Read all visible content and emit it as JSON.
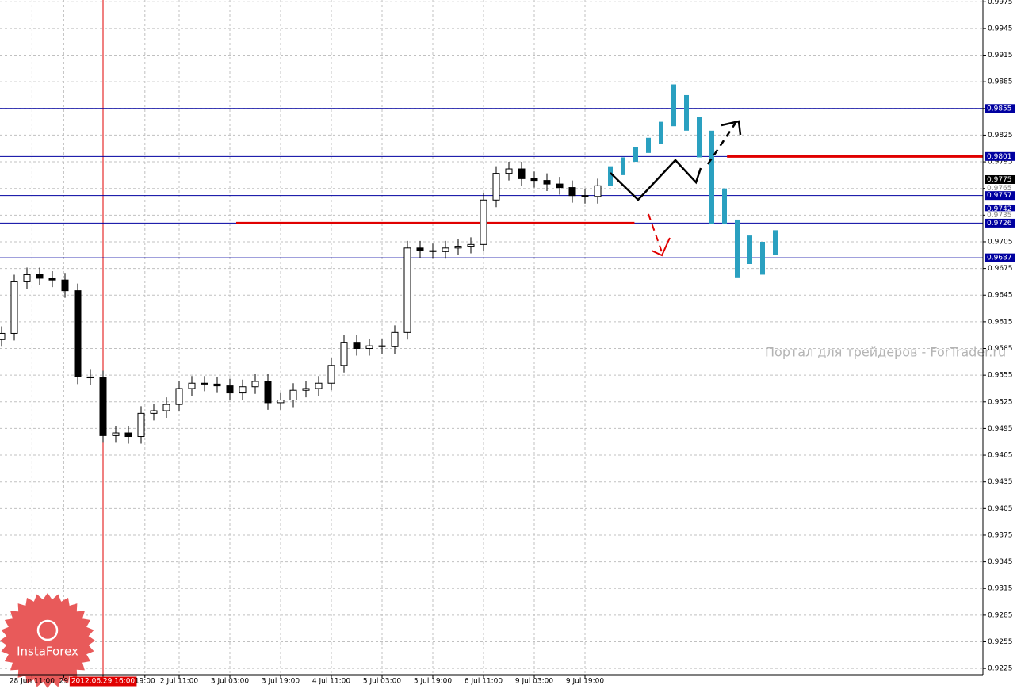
{
  "chart_data": {
    "type": "candlestick",
    "xlim": [
      -0.125,
      77.375
    ],
    "ylim": [
      0.9218,
      0.9977
    ],
    "yticks": [
      0.9975,
      0.9945,
      0.9915,
      0.9885,
      0.9855,
      0.9825,
      0.9795,
      0.9765,
      0.9735,
      0.9705,
      0.9675,
      0.9645,
      0.9615,
      0.9585,
      0.9555,
      0.9525,
      0.9495,
      0.9465,
      0.9435,
      0.9405,
      0.9375,
      0.9345,
      0.9315,
      0.9285,
      0.9255,
      0.9225
    ],
    "xticks": [
      {
        "value": 2.4,
        "label": "28 Jun 11:00"
      },
      {
        "value": 4.9,
        "label": "29"
      },
      {
        "value": 8,
        "label": "2012.06.29 16:00"
      },
      {
        "value": 11.3,
        "label": "19:00"
      },
      {
        "value": 14,
        "label": "2 Jul 11:00"
      },
      {
        "value": 18,
        "label": "3 Jul 03:00"
      },
      {
        "value": 22,
        "label": "3 Jul 19:00"
      },
      {
        "value": 26,
        "label": "4 Jul 11:00"
      },
      {
        "value": 30,
        "label": "5 Jul 03:00"
      },
      {
        "value": 34,
        "label": "5 Jul 19:00"
      },
      {
        "value": 38,
        "label": "6 Jul 11:00"
      },
      {
        "value": 42,
        "label": "9 Jul 03:00"
      },
      {
        "value": 46,
        "label": "9 Jul 19:00"
      }
    ],
    "marker_tick": 2,
    "grid": true,
    "x": [
      0,
      1,
      2,
      3,
      4,
      5,
      6,
      7,
      8,
      9,
      10,
      11,
      12,
      13,
      14,
      15,
      16,
      17,
      18,
      19,
      20,
      21,
      22,
      23,
      24,
      25,
      26,
      27,
      28,
      29,
      30,
      31,
      32,
      33,
      34,
      35,
      36,
      37,
      38,
      39,
      40,
      41,
      42,
      43,
      44,
      45,
      46,
      47
    ],
    "open": [
      0.9595,
      0.9602,
      0.966,
      0.9668,
      0.9664,
      0.9662,
      0.965,
      0.9553,
      0.9552,
      0.9487,
      0.949,
      0.9486,
      0.9512,
      0.9515,
      0.9522,
      0.954,
      0.9546,
      0.9545,
      0.9543,
      0.9535,
      0.9542,
      0.9548,
      0.9524,
      0.9527,
      0.9538,
      0.954,
      0.9546,
      0.9566,
      0.9592,
      0.9585,
      0.9588,
      0.9587,
      0.9603,
      0.9698,
      0.9695,
      0.9694,
      0.9698,
      0.97,
      0.9702,
      0.9752,
      0.9782,
      0.9787,
      0.9776,
      0.9774,
      0.977,
      0.9766,
      0.9757,
      0.9756
    ],
    "high": [
      0.961,
      0.9668,
      0.9676,
      0.9676,
      0.9672,
      0.967,
      0.9658,
      0.9561,
      0.956,
      0.9498,
      0.9498,
      0.952,
      0.9523,
      0.953,
      0.9548,
      0.9554,
      0.9554,
      0.9553,
      0.9551,
      0.955,
      0.9556,
      0.9556,
      0.9535,
      0.9546,
      0.9548,
      0.9554,
      0.9574,
      0.96,
      0.96,
      0.9596,
      0.9596,
      0.9611,
      0.9706,
      0.9706,
      0.9703,
      0.9706,
      0.9708,
      0.971,
      0.976,
      0.979,
      0.9795,
      0.9795,
      0.9784,
      0.9782,
      0.9778,
      0.9774,
      0.9765,
      0.9776
    ],
    "low": [
      0.9587,
      0.9594,
      0.9652,
      0.9656,
      0.9654,
      0.9642,
      0.9545,
      0.9544,
      0.9479,
      0.9479,
      0.9478,
      0.9478,
      0.9504,
      0.9507,
      0.9514,
      0.9532,
      0.9537,
      0.9535,
      0.9527,
      0.9527,
      0.9534,
      0.9516,
      0.9516,
      0.9519,
      0.953,
      0.9532,
      0.9538,
      0.9558,
      0.9577,
      0.9577,
      0.9579,
      0.9579,
      0.9595,
      0.9687,
      0.9686,
      0.9686,
      0.969,
      0.9692,
      0.9694,
      0.9744,
      0.9774,
      0.9768,
      0.9766,
      0.9762,
      0.9758,
      0.9749,
      0.9748,
      0.9748
    ],
    "close": [
      0.9602,
      0.966,
      0.9668,
      0.9664,
      0.9662,
      0.965,
      0.9553,
      0.9552,
      0.9487,
      0.949,
      0.9486,
      0.9512,
      0.9515,
      0.9522,
      0.954,
      0.9546,
      0.9545,
      0.9543,
      0.9535,
      0.9542,
      0.9548,
      0.9524,
      0.9527,
      0.9538,
      0.954,
      0.9546,
      0.9566,
      0.9592,
      0.9585,
      0.9588,
      0.9587,
      0.9603,
      0.9698,
      0.9695,
      0.9694,
      0.9698,
      0.97,
      0.9702,
      0.9752,
      0.9782,
      0.9787,
      0.9776,
      0.9774,
      0.977,
      0.9766,
      0.9757,
      0.9756,
      0.9768
    ],
    "forecast": {
      "color": "#2aa0c0",
      "x": [
        48,
        49,
        50,
        51,
        52,
        53,
        54,
        55,
        56,
        57,
        58,
        59,
        60,
        61
      ],
      "high": [
        0.979,
        0.98,
        0.9812,
        0.9822,
        0.984,
        0.9882,
        0.987,
        0.9845,
        0.983,
        0.9765,
        0.973,
        0.9712,
        0.9705,
        0.9718
      ],
      "low": [
        0.9768,
        0.978,
        0.9795,
        0.9805,
        0.9815,
        0.9835,
        0.983,
        0.98,
        0.9725,
        0.9725,
        0.9665,
        0.968,
        0.9668,
        0.969
      ]
    },
    "levels": [
      {
        "value": 0.9855,
        "color": "#0000a0",
        "line": true
      },
      {
        "value": 0.9801,
        "color": "#0000a0",
        "line": true
      },
      {
        "value": 0.9775,
        "color": "#000000",
        "line": false
      },
      {
        "value": 0.9765,
        "color": "#808080",
        "line": false
      },
      {
        "value": 0.9757,
        "color": "#0000a0",
        "line": true
      },
      {
        "value": 0.9742,
        "color": "#0000a0",
        "line": true
      },
      {
        "value": 0.9735,
        "color": "#808080",
        "line": false
      },
      {
        "value": 0.9726,
        "color": "#0000a0",
        "line": true
      },
      {
        "value": 0.9687,
        "color": "#0000a0",
        "line": true
      }
    ],
    "segments": [
      {
        "value": 0.9726,
        "x": [
          18.5,
          49.9
        ],
        "color": "#e00000"
      },
      {
        "value": 0.9801,
        "x": [
          57.2,
          77.4
        ],
        "color": "#e00000"
      }
    ],
    "watermark": "Портал для трейдеров - ForTrader.ru",
    "logo": "InstaForex"
  }
}
